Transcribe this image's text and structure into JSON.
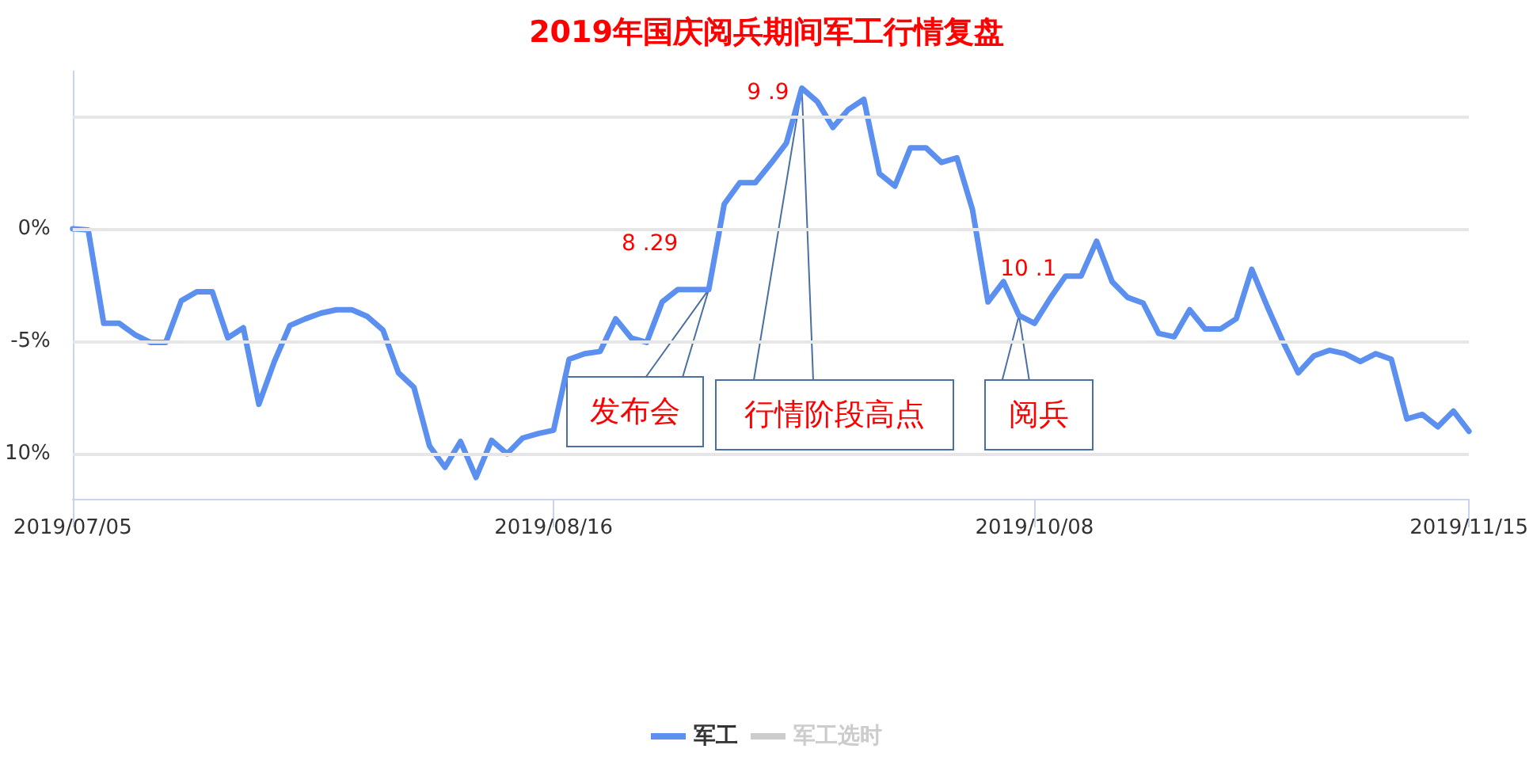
{
  "chart_data": {
    "type": "line",
    "title": "2019年国庆阅兵期间军工行情复盘",
    "categories": [
      "2019/07/05",
      null,
      null,
      null,
      null,
      null,
      null,
      null,
      null,
      null,
      null,
      null,
      null,
      null,
      null,
      null,
      null,
      null,
      null,
      null,
      null,
      null,
      null,
      null,
      null,
      null,
      null,
      null,
      null,
      null,
      null,
      "2019/08/16",
      null,
      null,
      null,
      null,
      null,
      null,
      null,
      null,
      null,
      null,
      null,
      null,
      null,
      null,
      null,
      null,
      null,
      null,
      null,
      null,
      null,
      null,
      null,
      null,
      null,
      null,
      null,
      null,
      null,
      null,
      "2019/10/08",
      null,
      null,
      null,
      null,
      null,
      null,
      null,
      null,
      null,
      null,
      null,
      null,
      null,
      null,
      null,
      null,
      null,
      null,
      null,
      null,
      null,
      null,
      null,
      null,
      null,
      null,
      null,
      "2019/11/15"
    ],
    "series": [
      {
        "name": "军工",
        "color": "#5b8ff0",
        "values": [
          0,
          -0.05,
          -4.2,
          -4.2,
          -4.7,
          -5.05,
          -5.05,
          -3.2,
          -2.8,
          -2.8,
          -4.85,
          -4.4,
          -7.8,
          -5.9,
          -4.3,
          -4.0,
          -3.75,
          -3.6,
          -3.6,
          -3.9,
          -4.5,
          -6.4,
          -7.05,
          -9.65,
          -10.6,
          -9.45,
          -11.05,
          -9.4,
          -10.0,
          -9.3,
          -9.1,
          -8.95,
          -5.8,
          -5.55,
          -5.45,
          -4.0,
          -4.85,
          -5.05,
          -3.25,
          -2.7,
          -2.7,
          -2.7,
          1.1,
          2.05,
          2.05,
          2.9,
          3.8,
          6.25,
          5.65,
          4.5,
          5.3,
          5.75,
          2.45,
          1.9,
          3.6,
          3.6,
          2.95,
          3.15,
          0.85,
          -3.25,
          -2.35,
          -3.85,
          -4.2,
          -3.1,
          -2.1,
          -2.1,
          -0.55,
          -2.35,
          -3.05,
          -3.3,
          -4.65,
          -4.8,
          -3.6,
          -4.45,
          -4.45,
          -4.0,
          -1.8,
          -3.45,
          -5.0,
          -6.4,
          -5.65,
          -5.4,
          -5.55,
          -5.9,
          -5.55,
          -5.8,
          -8.45,
          -8.25,
          -8.8,
          -8.1,
          -9.0
        ]
      },
      {
        "name": "军工选时",
        "color": "#cccccc",
        "values": [
          null,
          null,
          null,
          null,
          null,
          null,
          null,
          null,
          null,
          null,
          null,
          null,
          null,
          null,
          null,
          null,
          null,
          null,
          null,
          null,
          null,
          null,
          null,
          null,
          null,
          null,
          null,
          null,
          null,
          null,
          null,
          null,
          null,
          null,
          null,
          null,
          null,
          null,
          null,
          null,
          null,
          null,
          null,
          null,
          null,
          null,
          null,
          null,
          null,
          null,
          null,
          null,
          null,
          null,
          null,
          null,
          null,
          null,
          null,
          null,
          null,
          null,
          null,
          null,
          null,
          null,
          null,
          null,
          null,
          null,
          null,
          null,
          null,
          null,
          null,
          null,
          null,
          null,
          null,
          null,
          null,
          null,
          null,
          null,
          null,
          null,
          null,
          null,
          null,
          null,
          null
        ]
      }
    ],
    "ylim": [
      -12,
      7
    ],
    "yticks": [
      {
        "value": 5,
        "label": null
      },
      {
        "value": 0,
        "label": "0%"
      },
      {
        "value": -5,
        "label": "-5%"
      },
      {
        "value": -10,
        "label": "10%"
      }
    ],
    "grid": "y",
    "legend": "bottom",
    "marker": "none",
    "line_style": "solid",
    "annotations": [
      "8 .29",
      "9 .9",
      "10 .1",
      "发布会",
      "行情阶段高点",
      {
        "text": "阅兵",
        "y": -3.85
      }
    ]
  }
}
